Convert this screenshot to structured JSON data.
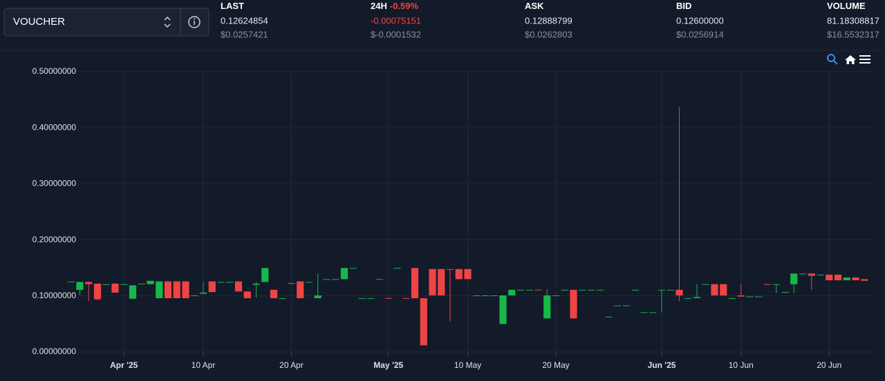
{
  "market": {
    "symbol": "VOUCHER",
    "stats": [
      {
        "label": "LAST",
        "value": "0.12624854",
        "usd": "$0.0257421"
      },
      {
        "label": "24H",
        "change": "-0.59%",
        "value": "-0.00075151",
        "usd": "$-0.0001532"
      },
      {
        "label": "ASK",
        "value": "0.12888799",
        "usd": "$0.0262803"
      },
      {
        "label": "BID",
        "value": "0.12600000",
        "usd": "$0.0256914"
      },
      {
        "label": "VOLUME",
        "value": "81.18308817",
        "usd": "$16.5532317"
      }
    ]
  },
  "chart_data": {
    "type": "candlestick",
    "up_color": "#16b848",
    "down_color": "#ef4444",
    "grid": true,
    "xlim": [
      "2025-03-25",
      "2025-06-25"
    ],
    "xticks": [
      {
        "value": "2025-04-01",
        "label": "Apr '25"
      },
      {
        "value": "2025-04-10",
        "label": "10 Apr"
      },
      {
        "value": "2025-04-20",
        "label": "20 Apr"
      },
      {
        "value": "2025-05-01",
        "label": "May '25"
      },
      {
        "value": "2025-05-10",
        "label": "10 May"
      },
      {
        "value": "2025-05-20",
        "label": "20 May"
      },
      {
        "value": "2025-06-01",
        "label": "Jun '25"
      },
      {
        "value": "2025-06-10",
        "label": "10 Jun"
      },
      {
        "value": "2025-06-20",
        "label": "20 Jun"
      }
    ],
    "ylim": [
      0,
      0.5
    ],
    "yticks": [
      {
        "value": 0,
        "label": "0.00000000"
      },
      {
        "value": 0.1,
        "label": "0.10000000"
      },
      {
        "value": 0.2,
        "label": "0.20000000"
      },
      {
        "value": 0.3,
        "label": "0.30000000"
      },
      {
        "value": 0.4,
        "label": "0.40000000"
      },
      {
        "value": 0.5,
        "label": "0.50000000"
      }
    ],
    "x": [
      "2025-03-26",
      "2025-03-27",
      "2025-03-28",
      "2025-03-29",
      "2025-03-30",
      "2025-03-31",
      "2025-04-01",
      "2025-04-02",
      "2025-04-03",
      "2025-04-04",
      "2025-04-05",
      "2025-04-06",
      "2025-04-07",
      "2025-04-08",
      "2025-04-09",
      "2025-04-10",
      "2025-04-11",
      "2025-04-12",
      "2025-04-13",
      "2025-04-14",
      "2025-04-15",
      "2025-04-16",
      "2025-04-17",
      "2025-04-18",
      "2025-04-19",
      "2025-04-20",
      "2025-04-21",
      "2025-04-22",
      "2025-04-23",
      "2025-04-24",
      "2025-04-25",
      "2025-04-26",
      "2025-04-27",
      "2025-04-28",
      "2025-04-29",
      "2025-04-30",
      "2025-05-01",
      "2025-05-02",
      "2025-05-03",
      "2025-05-04",
      "2025-05-05",
      "2025-05-06",
      "2025-05-07",
      "2025-05-08",
      "2025-05-09",
      "2025-05-10",
      "2025-05-11",
      "2025-05-12",
      "2025-05-13",
      "2025-05-14",
      "2025-05-15",
      "2025-05-16",
      "2025-05-17",
      "2025-05-18",
      "2025-05-19",
      "2025-05-20",
      "2025-05-21",
      "2025-05-22",
      "2025-05-23",
      "2025-05-24",
      "2025-05-25",
      "2025-05-26",
      "2025-05-27",
      "2025-05-28",
      "2025-05-29",
      "2025-05-30",
      "2025-05-31",
      "2025-06-01",
      "2025-06-02",
      "2025-06-03",
      "2025-06-04",
      "2025-06-05",
      "2025-06-06",
      "2025-06-07",
      "2025-06-08",
      "2025-06-09",
      "2025-06-10",
      "2025-06-11",
      "2025-06-12",
      "2025-06-13",
      "2025-06-14",
      "2025-06-15",
      "2025-06-16",
      "2025-06-17",
      "2025-06-18",
      "2025-06-19",
      "2025-06-20",
      "2025-06-21",
      "2025-06-22",
      "2025-06-23",
      "2025-06-24"
    ],
    "open": [
      0.1256,
      0.111,
      0.125,
      0.122,
      0.121,
      0.122,
      0.121,
      0.095,
      0.122,
      0.121,
      0.096,
      0.126,
      0.126,
      0.126,
      0.101,
      0.104,
      0.126,
      0.125,
      0.125,
      0.126,
      0.108,
      0.12,
      0.125,
      0.111,
      0.096,
      0.123,
      0.126,
      0.125,
      0.096,
      0.13,
      0.13,
      0.13,
      0.15,
      0.096,
      0.096,
      0.1302,
      0.0962,
      0.15,
      0.0962,
      0.15,
      0.096,
      0.148,
      0.148,
      0.148,
      0.148,
      0.148,
      0.101,
      0.101,
      0.101,
      0.05,
      0.101,
      0.111,
      0.111,
      0.1112,
      0.06,
      0.101,
      0.111,
      0.111,
      0.111,
      0.111,
      0.111,
      0.063,
      0.083,
      0.083,
      0.111,
      0.071,
      0.071,
      0.11,
      0.111,
      0.111,
      0.096,
      0.096,
      0.121,
      0.121,
      0.121,
      0.096,
      0.101,
      0.099,
      0.099,
      0.1212,
      0.12,
      0.107,
      0.121,
      0.14,
      0.14,
      0.138,
      0.138,
      0.138,
      0.128,
      0.133,
      0.13
    ],
    "high": [
      0.1256,
      0.125,
      0.126,
      0.122,
      0.121,
      0.122,
      0.121,
      0.119,
      0.122,
      0.127,
      0.126,
      0.126,
      0.126,
      0.126,
      0.101,
      0.125,
      0.126,
      0.125,
      0.125,
      0.126,
      0.108,
      0.125,
      0.15,
      0.111,
      0.096,
      0.123,
      0.126,
      0.125,
      0.14,
      0.13,
      0.13,
      0.15,
      0.15,
      0.096,
      0.096,
      0.1302,
      0.0962,
      0.15,
      0.0962,
      0.15,
      0.096,
      0.148,
      0.148,
      0.148,
      0.148,
      0.148,
      0.101,
      0.101,
      0.101,
      0.101,
      0.111,
      0.111,
      0.111,
      0.1112,
      0.112,
      0.101,
      0.111,
      0.111,
      0.111,
      0.111,
      0.111,
      0.063,
      0.083,
      0.083,
      0.111,
      0.071,
      0.071,
      0.111,
      0.111,
      0.437,
      0.096,
      0.121,
      0.121,
      0.121,
      0.121,
      0.096,
      0.121,
      0.099,
      0.099,
      0.1212,
      0.121,
      0.107,
      0.14,
      0.14,
      0.14,
      0.138,
      0.138,
      0.138,
      0.133,
      0.133,
      0.13
    ],
    "low": [
      0.1256,
      0.101,
      0.091,
      0.092,
      0.121,
      0.106,
      0.121,
      0.095,
      0.122,
      0.121,
      0.096,
      0.096,
      0.096,
      0.096,
      0.101,
      0.104,
      0.107,
      0.125,
      0.125,
      0.108,
      0.096,
      0.097,
      0.125,
      0.096,
      0.096,
      0.123,
      0.096,
      0.125,
      0.096,
      0.13,
      0.13,
      0.13,
      0.15,
      0.096,
      0.096,
      0.13,
      0.096,
      0.15,
      0.096,
      0.096,
      0.012,
      0.101,
      0.101,
      0.055,
      0.13,
      0.13,
      0.101,
      0.101,
      0.101,
      0.05,
      0.101,
      0.111,
      0.111,
      0.111,
      0.06,
      0.101,
      0.111,
      0.06,
      0.111,
      0.111,
      0.111,
      0.063,
      0.083,
      0.083,
      0.111,
      0.071,
      0.071,
      0.071,
      0.111,
      0.091,
      0.096,
      0.096,
      0.121,
      0.101,
      0.101,
      0.096,
      0.099,
      0.099,
      0.099,
      0.121,
      0.105,
      0.107,
      0.105,
      0.14,
      0.111,
      0.138,
      0.128,
      0.128,
      0.128,
      0.128,
      0.127
    ],
    "close": [
      0.1256,
      0.125,
      0.121,
      0.094,
      0.121,
      0.106,
      0.121,
      0.119,
      0.122,
      0.127,
      0.126,
      0.096,
      0.096,
      0.096,
      0.101,
      0.106,
      0.107,
      0.125,
      0.125,
      0.108,
      0.096,
      0.122,
      0.15,
      0.096,
      0.096,
      0.123,
      0.096,
      0.125,
      0.101,
      0.13,
      0.13,
      0.15,
      0.15,
      0.096,
      0.096,
      0.13,
      0.096,
      0.15,
      0.096,
      0.096,
      0.012,
      0.101,
      0.101,
      0.147,
      0.13,
      0.13,
      0.101,
      0.101,
      0.101,
      0.101,
      0.111,
      0.111,
      0.111,
      0.111,
      0.101,
      0.101,
      0.111,
      0.06,
      0.111,
      0.111,
      0.111,
      0.063,
      0.083,
      0.083,
      0.111,
      0.071,
      0.071,
      0.111,
      0.111,
      0.101,
      0.096,
      0.098,
      0.121,
      0.101,
      0.101,
      0.096,
      0.099,
      0.099,
      0.099,
      0.121,
      0.121,
      0.107,
      0.14,
      0.14,
      0.136,
      0.138,
      0.128,
      0.128,
      0.133,
      0.128,
      0.127
    ]
  }
}
